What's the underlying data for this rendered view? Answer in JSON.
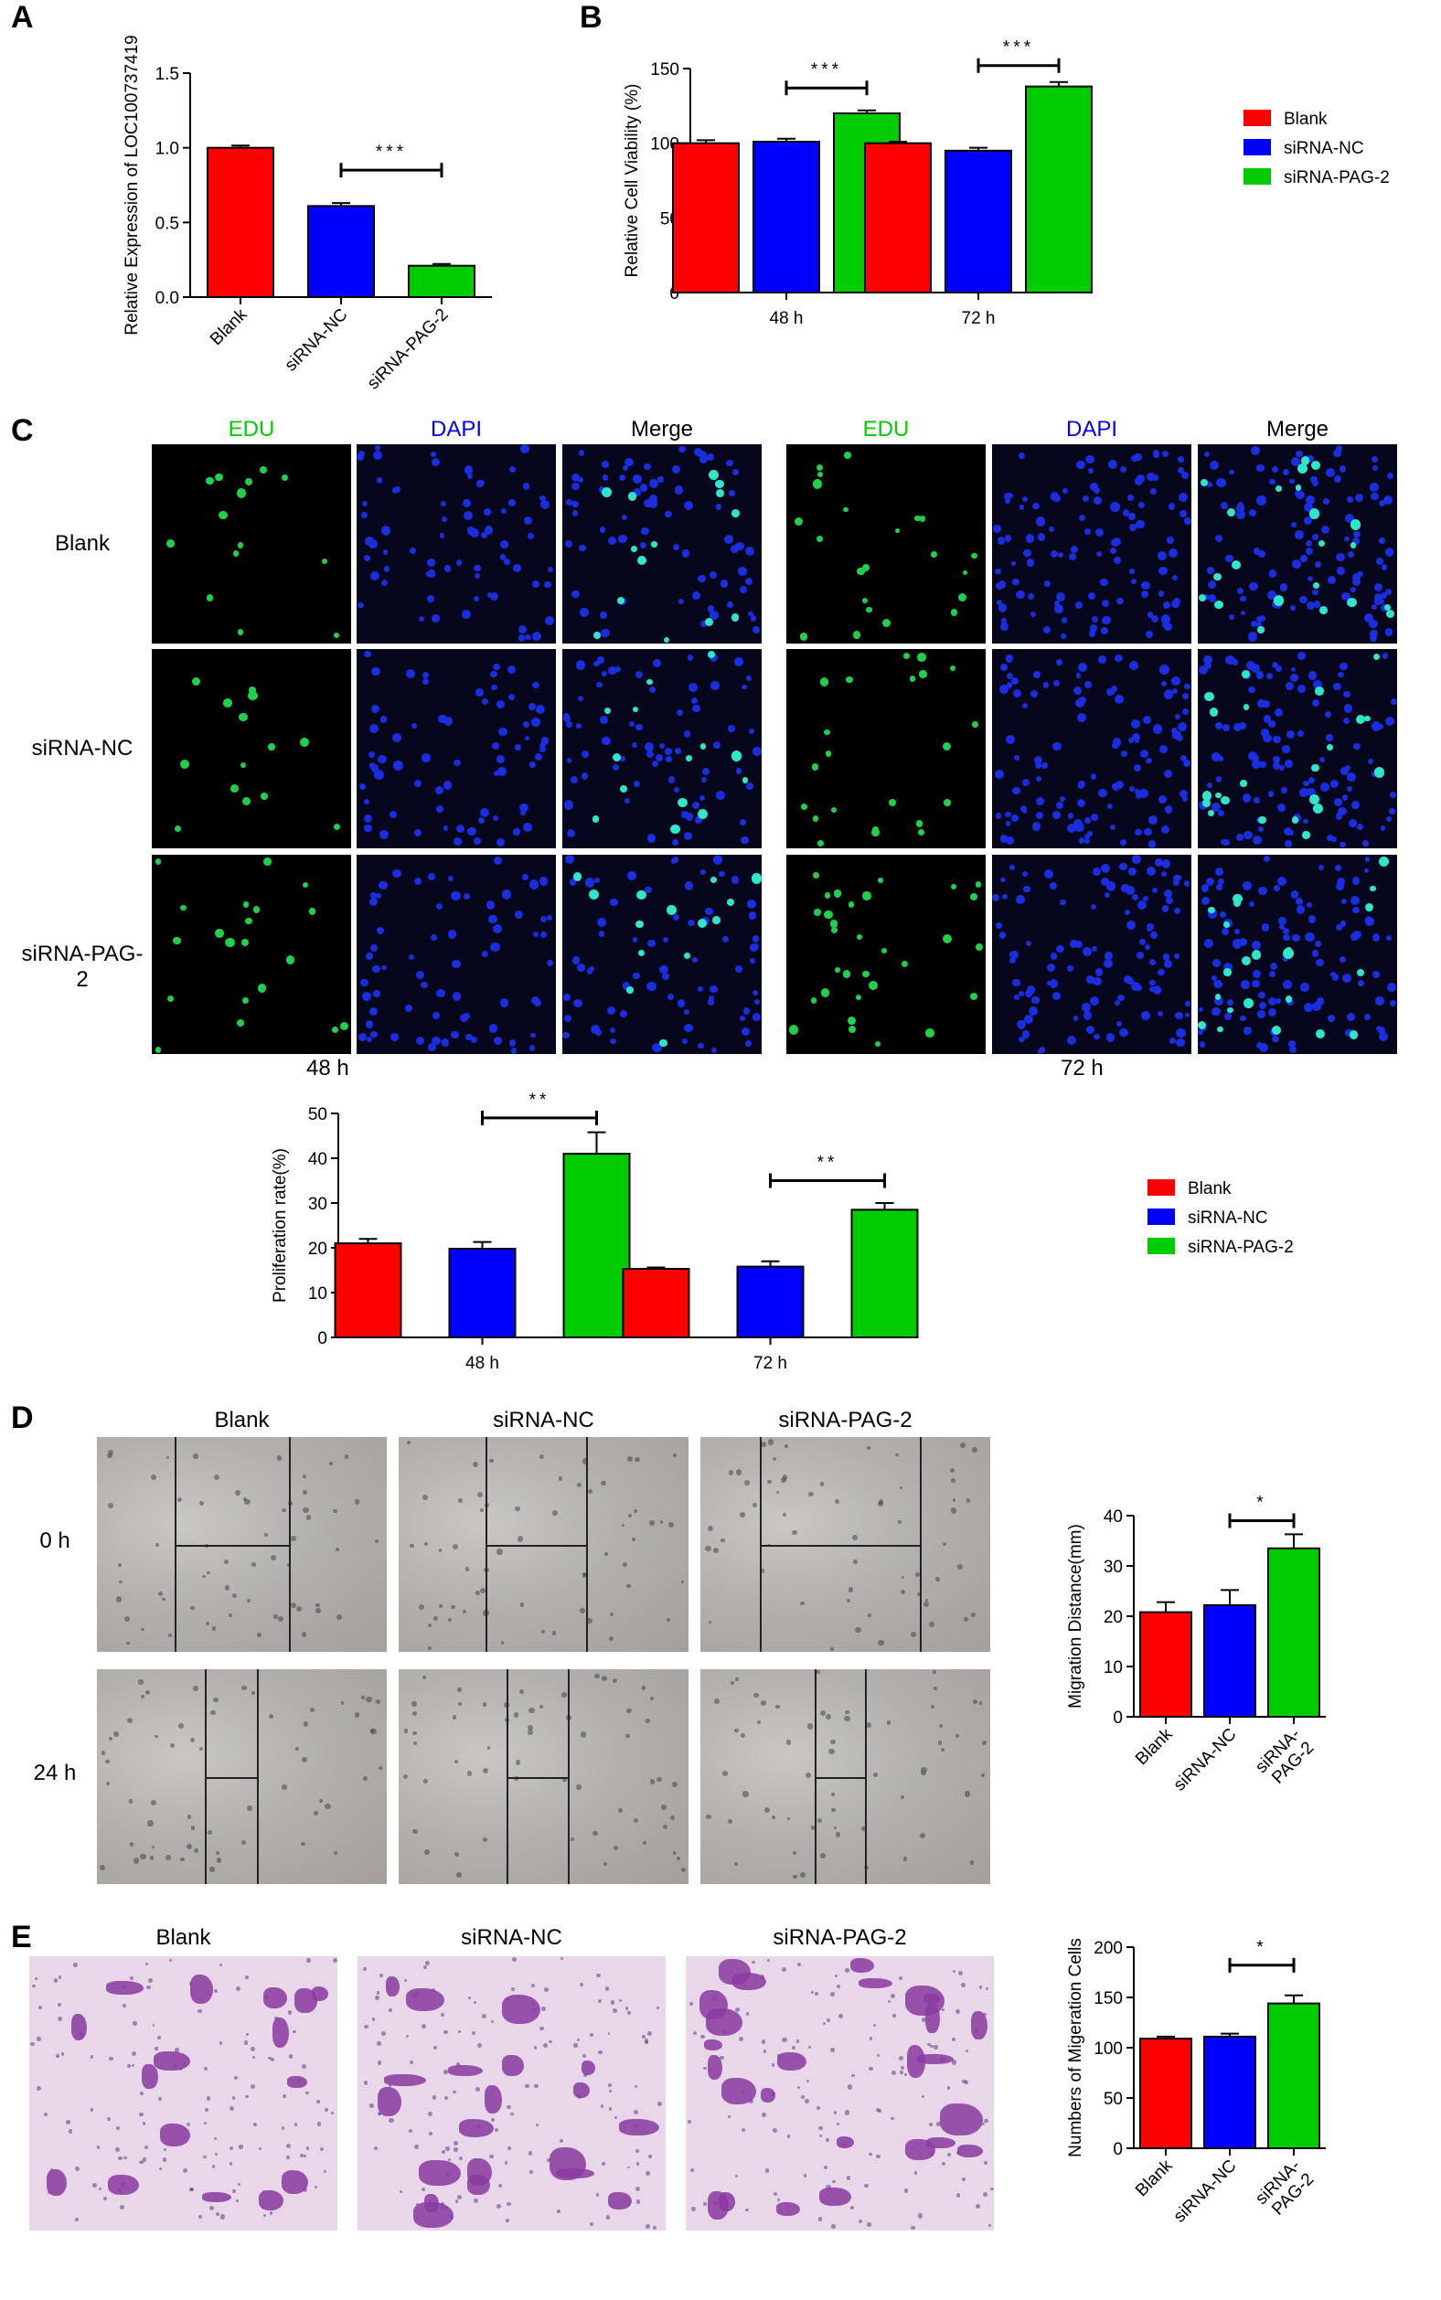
{
  "panels": {
    "A": {
      "letter": "A"
    },
    "B": {
      "letter": "B"
    },
    "C": {
      "letter": "C"
    },
    "D": {
      "letter": "D"
    },
    "E": {
      "letter": "E"
    }
  },
  "colors": {
    "blank": "#ff0000",
    "siRNA_NC": "#0000ff",
    "siRNA_PAG_2": "#00cc00"
  },
  "panel_c": {
    "columns": [
      "EDU",
      "DAPI",
      "Merge",
      "EDU",
      "DAPI",
      "Merge"
    ],
    "rows": [
      "Blank",
      "siRNA-NC",
      "siRNA-PAG-2"
    ],
    "time_labels": [
      "48 h",
      "72 h"
    ]
  },
  "panel_d": {
    "columns": [
      "Blank",
      "siRNA-NC",
      "siRNA-PAG-2"
    ],
    "rows": [
      "0 h",
      "24 h"
    ]
  },
  "panel_e": {
    "columns": [
      "Blank",
      "siRNA-NC",
      "siRNA-PAG-2"
    ]
  },
  "chart_data": [
    {
      "id": "A",
      "type": "bar",
      "categories": [
        "Blank",
        "siRNA-NC",
        "siRNA-PAG-2"
      ],
      "values": [
        1.0,
        0.61,
        0.21
      ],
      "errors": [
        0.015,
        0.02,
        0.012
      ],
      "colors": [
        "#ff0000",
        "#0000ff",
        "#00cc00"
      ],
      "ylabel": "Relative Expression of LOC100737419",
      "ylim": [
        0,
        1.5
      ],
      "yticks": [
        "0.0",
        "0.5",
        "1.0",
        "1.5"
      ],
      "significance": [
        {
          "from": 1,
          "to": 2,
          "label": "***"
        }
      ]
    },
    {
      "id": "B",
      "type": "bar",
      "categories": [
        "48 h",
        "72 h"
      ],
      "series": [
        {
          "name": "Blank",
          "values": [
            100,
            100
          ],
          "errors": [
            2,
            1
          ]
        },
        {
          "name": "siRNA-NC",
          "values": [
            101,
            95
          ],
          "errors": [
            2,
            2
          ]
        },
        {
          "name": "siRNA-PAG-2",
          "values": [
            120,
            138
          ],
          "errors": [
            2,
            3
          ]
        }
      ],
      "colors": [
        "#ff0000",
        "#0000ff",
        "#00cc00"
      ],
      "ylabel": "Relative Cell Viability (%)",
      "ylim": [
        0,
        150
      ],
      "yticks": [
        "0",
        "50",
        "100",
        "150"
      ],
      "legend": "right",
      "significance": [
        {
          "group": 0,
          "from": 1,
          "to": 2,
          "label": "***"
        },
        {
          "group": 1,
          "from": 1,
          "to": 2,
          "label": "***"
        }
      ]
    },
    {
      "id": "C",
      "type": "bar",
      "categories": [
        "48 h",
        "72 h"
      ],
      "series": [
        {
          "name": "Blank",
          "values": [
            21,
            15.3
          ],
          "errors": [
            1,
            0.3
          ]
        },
        {
          "name": "siRNA-NC",
          "values": [
            19.8,
            15.8
          ],
          "errors": [
            1.5,
            1.2
          ]
        },
        {
          "name": "siRNA-PAG-2",
          "values": [
            41,
            28.5
          ],
          "errors": [
            4.8,
            1.5
          ]
        }
      ],
      "colors": [
        "#ff0000",
        "#0000ff",
        "#00cc00"
      ],
      "ylabel": "Proliferation rate(%)",
      "ylim": [
        0,
        50
      ],
      "yticks": [
        "0",
        "10",
        "20",
        "30",
        "40",
        "50"
      ],
      "legend": "right",
      "significance": [
        {
          "group": 0,
          "from": 1,
          "to": 2,
          "label": "**"
        },
        {
          "group": 1,
          "from": 1,
          "to": 2,
          "label": "**"
        }
      ]
    },
    {
      "id": "D",
      "type": "bar",
      "categories": [
        "Blank",
        "siRNA-NC",
        "siRNA-\nPAG-2"
      ],
      "values": [
        20.8,
        22.2,
        33.5
      ],
      "errors": [
        2,
        3,
        2.8
      ],
      "colors": [
        "#ff0000",
        "#0000ff",
        "#00cc00"
      ],
      "ylabel": "Migration Distance(mm)",
      "ylim": [
        0,
        40
      ],
      "yticks": [
        "0",
        "10",
        "20",
        "30",
        "40"
      ],
      "significance": [
        {
          "from": 1,
          "to": 2,
          "label": "*"
        }
      ]
    },
    {
      "id": "E",
      "type": "bar",
      "categories": [
        "Blank",
        "siRNA-NC",
        "siRNA-\nPAG-2"
      ],
      "values": [
        109,
        111,
        144
      ],
      "errors": [
        2,
        3,
        8
      ],
      "colors": [
        "#ff0000",
        "#0000ff",
        "#00cc00"
      ],
      "ylabel": "Numbers of Migeration Cells",
      "ylim": [
        0,
        200
      ],
      "yticks": [
        "0",
        "50",
        "100",
        "150",
        "200"
      ],
      "significance": [
        {
          "from": 1,
          "to": 2,
          "label": "*"
        }
      ]
    }
  ]
}
